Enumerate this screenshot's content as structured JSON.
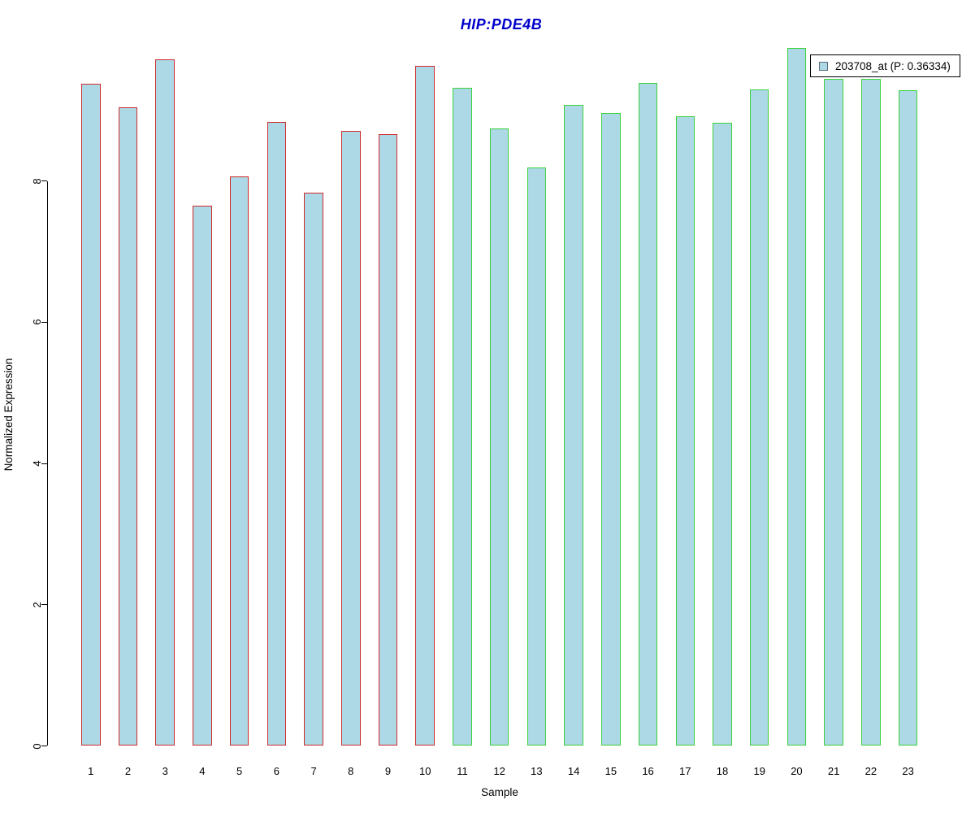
{
  "legend": {
    "label": "203708_at (P: 0.36334)",
    "swatch_fill": "#ADD8E6",
    "swatch_border": "#5A6B7A"
  },
  "chart_data": {
    "type": "bar",
    "title": "HIP:PDE4B",
    "title_color": "#0000CD",
    "xlabel": "Sample",
    "ylabel": "Normalized Expression",
    "categories": [
      "1",
      "2",
      "3",
      "4",
      "5",
      "6",
      "7",
      "8",
      "9",
      "10",
      "11",
      "12",
      "13",
      "14",
      "15",
      "16",
      "17",
      "18",
      "19",
      "20",
      "21",
      "22",
      "23"
    ],
    "values": [
      9.38,
      9.04,
      9.72,
      7.65,
      8.07,
      8.84,
      7.84,
      8.71,
      8.66,
      9.63,
      9.32,
      8.74,
      8.19,
      9.08,
      8.96,
      9.39,
      8.92,
      8.83,
      9.3,
      9.89,
      9.45,
      9.45,
      9.29
    ],
    "series": [
      {
        "name": "203708_at (P: 0.36334)"
      }
    ],
    "bar_fill": "#ADD8E6",
    "bar_groups": [
      {
        "from": 1,
        "to": 10,
        "border_color": "#CE2B2B"
      },
      {
        "from": 11,
        "to": 23,
        "border_color": "#3BD23B"
      }
    ],
    "yticks": [
      0,
      2,
      4,
      6,
      8
    ],
    "ylim": [
      0,
      10
    ],
    "grid": false,
    "axis_color": "#000000",
    "legend_position": "top-right"
  }
}
